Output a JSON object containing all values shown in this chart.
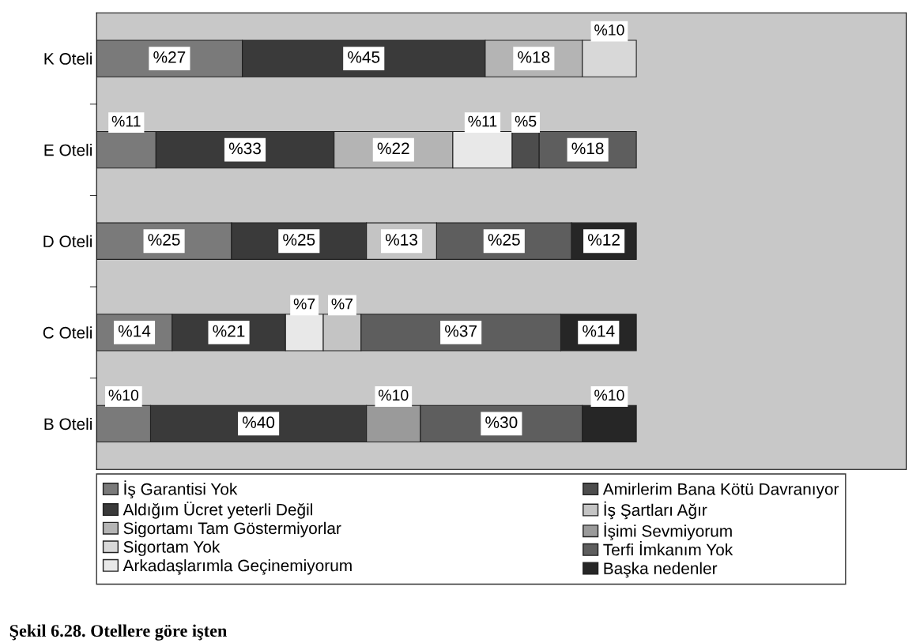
{
  "chart_data": {
    "type": "bar",
    "orientation": "horizontal",
    "stacked": true,
    "categories": [
      "K Oteli",
      "E Oteli",
      "D Oteli",
      "C Oteli",
      "B Oteli"
    ],
    "xlim": [
      0,
      150
    ],
    "tick_labels": "y",
    "legend": "bottom",
    "grid": false,
    "series": [
      {
        "name": "İş Garantisi Yok",
        "color": "#7a7a7a",
        "values": [
          27,
          11,
          25,
          14,
          10
        ],
        "value_labels": [
          "%27",
          "%11",
          "%25",
          "%14",
          "%10"
        ]
      },
      {
        "name": "Aldığım Ücret yeterli Değil",
        "color": "#3a3a3a",
        "values": [
          45,
          33,
          25,
          21,
          40
        ],
        "value_labels": [
          "%45",
          "%33",
          "%25",
          "%21",
          "%40"
        ]
      },
      {
        "name": "Sigortamı Tam Göstermiyorlar",
        "color": "#b4b4b4",
        "values": [
          18,
          22,
          null,
          null,
          null
        ],
        "value_labels": [
          "%18",
          "%22",
          null,
          null,
          null
        ]
      },
      {
        "name": "Sigortam Yok",
        "color": "#d8d8d8",
        "values": [
          10,
          null,
          null,
          null,
          null
        ],
        "value_labels": [
          "%10",
          null,
          null,
          null,
          null
        ]
      },
      {
        "name": "Arkadaşlarımla Geçinemiyorum",
        "color": "#e8e8e8",
        "values": [
          null,
          11,
          null,
          7,
          null
        ],
        "value_labels": [
          null,
          "%11",
          null,
          "%7",
          null
        ]
      },
      {
        "name": "Amirlerim Bana Kötü Davranıyor",
        "color": "#4d4d4d",
        "values": [
          null,
          5,
          null,
          null,
          null
        ],
        "value_labels": [
          null,
          "%5",
          null,
          null,
          null
        ]
      },
      {
        "name": "İş Şartları Ağır",
        "color": "#c4c4c4",
        "values": [
          null,
          null,
          13,
          7,
          null
        ],
        "value_labels": [
          null,
          null,
          "%13",
          "%7",
          null
        ]
      },
      {
        "name": "İşimi Sevmiyorum",
        "color": "#9a9a9a",
        "values": [
          null,
          null,
          null,
          null,
          10
        ],
        "value_labels": [
          null,
          null,
          null,
          null,
          "%10"
        ]
      },
      {
        "name": "Terfi İmkanım Yok",
        "color": "#5e5e5e",
        "values": [
          null,
          18,
          25,
          37,
          30
        ],
        "value_labels": [
          null,
          "%18",
          "%25",
          "%37",
          "%30"
        ]
      },
      {
        "name": "Başka nedenler",
        "color": "#262626",
        "values": [
          null,
          null,
          12,
          14,
          10
        ],
        "value_labels": [
          null,
          null,
          "%12",
          "%14",
          "%10"
        ]
      }
    ],
    "annotations": [
      "Şekil 6.28. Otellere göre işten"
    ]
  }
}
